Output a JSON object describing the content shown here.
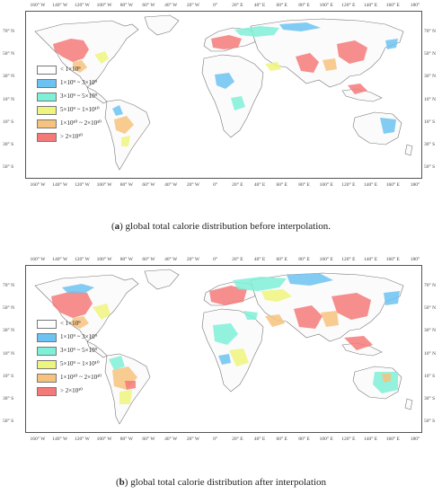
{
  "legend": [
    {
      "label": "< 1×10⁹",
      "color": "#ffffff"
    },
    {
      "label": "1×10⁹ ~ 3×10⁹",
      "color": "#6cc3f2"
    },
    {
      "label": "3×10⁹ ~ 5×10⁹",
      "color": "#7ff0d8"
    },
    {
      "label": "5×10⁹ ~ 1×10¹⁰",
      "color": "#eef57e"
    },
    {
      "label": "1×10¹⁰ ~ 2×10¹⁰",
      "color": "#f7c27e"
    },
    {
      "label": "> 2×10¹⁰",
      "color": "#f47a7a"
    }
  ],
  "lon_ticks": [
    "160° W",
    "140° W",
    "120° W",
    "100° W",
    "80° W",
    "60° W",
    "40° W",
    "20° W",
    "0°",
    "20° E",
    "40° E",
    "60° E",
    "80° E",
    "100° E",
    "120° E",
    "140° E",
    "160° E",
    "180°"
  ],
  "lat_ticks": [
    "70° N",
    "50° N",
    "30° N",
    "10° N",
    "10° S",
    "30° S",
    "50° S"
  ],
  "panels": [
    {
      "id": "a",
      "caption_letter": "a",
      "caption_text": " global total calorie distribution before interpolation."
    },
    {
      "id": "b",
      "caption_letter": "b",
      "caption_text": " global total calorie distribution after interpolation"
    }
  ]
}
